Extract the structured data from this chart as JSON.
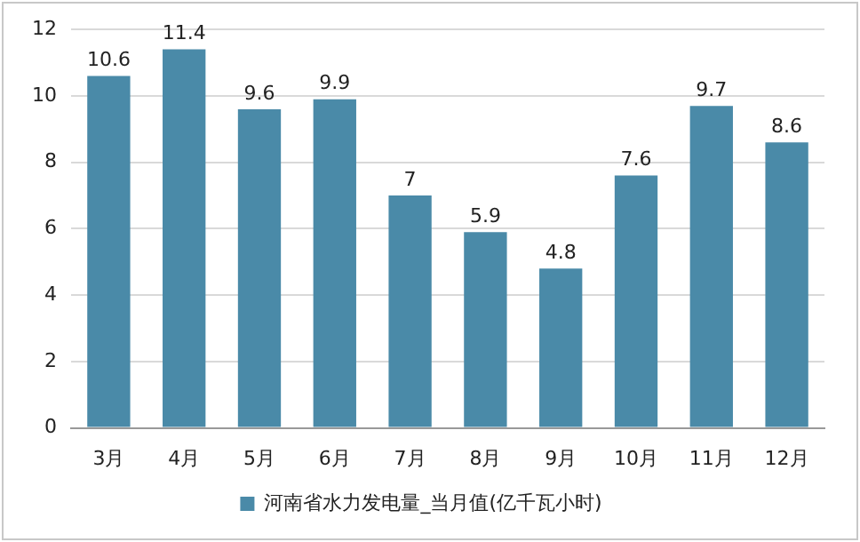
{
  "chart_data": {
    "type": "bar",
    "categories": [
      "3月",
      "4月",
      "5月",
      "6月",
      "7月",
      "8月",
      "9月",
      "10月",
      "11月",
      "12月"
    ],
    "series": [
      {
        "name": "河南省水力发电量_当月值(亿千瓦小时)",
        "color": "#4a8aa8",
        "values": [
          10.6,
          11.4,
          9.6,
          9.9,
          7,
          5.9,
          4.8,
          7.6,
          9.7,
          8.6
        ]
      }
    ],
    "ylim": [
      0,
      12
    ],
    "yticks": [
      0,
      2,
      4,
      6,
      8,
      10,
      12
    ],
    "grid": "y",
    "legend": "bottom",
    "data_labels": true
  }
}
